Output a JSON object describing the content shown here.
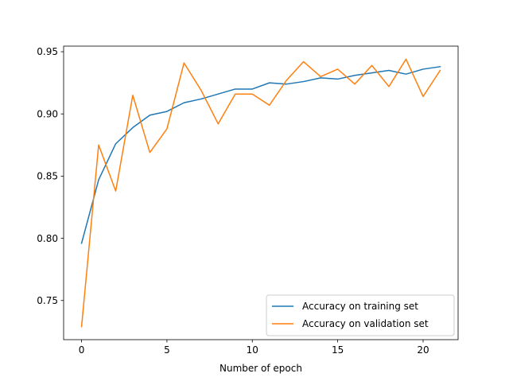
{
  "chart_data": {
    "type": "line",
    "title": "",
    "xlabel": "Number of epoch",
    "ylabel": "",
    "xlim": [
      -1.05,
      22.05
    ],
    "ylim": [
      0.7185,
      0.9545
    ],
    "xticks": [
      0,
      5,
      10,
      15,
      20
    ],
    "yticks": [
      0.75,
      0.8,
      0.85,
      0.9,
      0.95
    ],
    "xtick_labels": [
      "0",
      "5",
      "10",
      "15",
      "20"
    ],
    "ytick_labels": [
      "0.75",
      "0.80",
      "0.85",
      "0.90",
      "0.95"
    ],
    "grid": false,
    "legend_position": "lower-right",
    "x": [
      0,
      1,
      2,
      3,
      4,
      5,
      6,
      7,
      8,
      9,
      10,
      11,
      12,
      13,
      14,
      15,
      16,
      17,
      18,
      19,
      20,
      21
    ],
    "series": [
      {
        "name": "Accuracy on training set",
        "color": "#1f77b4",
        "values": [
          0.796,
          0.847,
          0.876,
          0.889,
          0.899,
          0.902,
          0.909,
          0.912,
          0.916,
          0.92,
          0.92,
          0.925,
          0.924,
          0.926,
          0.929,
          0.928,
          0.931,
          0.933,
          0.935,
          0.932,
          0.936,
          0.938
        ]
      },
      {
        "name": "Accuracy on validation set",
        "color": "#ff7f0e",
        "values": [
          0.729,
          0.875,
          0.838,
          0.915,
          0.869,
          0.888,
          0.941,
          0.919,
          0.892,
          0.916,
          0.916,
          0.907,
          0.927,
          0.942,
          0.93,
          0.936,
          0.924,
          0.939,
          0.922,
          0.944,
          0.914,
          0.935
        ]
      }
    ]
  }
}
